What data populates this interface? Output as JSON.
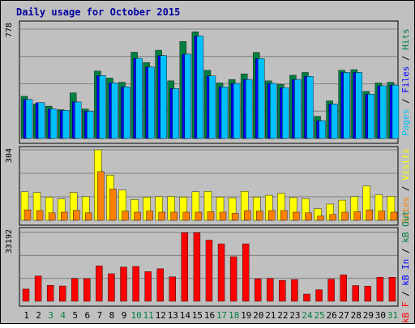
{
  "chart_data": {
    "type": "bar",
    "title": "Daily usage for October 2015",
    "categories": [
      "1",
      "2",
      "3",
      "4",
      "5",
      "6",
      "7",
      "8",
      "9",
      "10",
      "11",
      "12",
      "13",
      "14",
      "15",
      "16",
      "17",
      "18",
      "19",
      "20",
      "21",
      "22",
      "23",
      "24",
      "25",
      "26",
      "27",
      "28",
      "29",
      "30",
      "31"
    ],
    "weekend_days": [
      "3",
      "4",
      "10",
      "11",
      "17",
      "18",
      "24",
      "25",
      "31"
    ],
    "panels": [
      {
        "id": "top",
        "max_label": "778",
        "ylim": [
          0,
          778
        ],
        "legend": [
          "Pages",
          "Files",
          "Hits"
        ],
        "series": [
          {
            "name": "Hits",
            "color": "#008040",
            "values": [
              300,
              245,
              230,
              205,
              325,
              210,
              480,
              430,
              400,
              614,
              540,
              628,
              410,
              690,
              759,
              485,
              395,
              420,
              460,
              612,
              410,
              385,
              450,
              470,
              157,
              268,
              485,
              490,
              335,
              395,
              400
            ]
          },
          {
            "name": "Files",
            "color": "#0000ff",
            "values": [
              278,
              255,
              210,
              200,
              260,
              195,
              448,
              395,
              368,
              570,
              508,
              590,
              355,
              600,
              729,
              445,
              367,
              392,
              420,
              568,
              392,
              362,
              420,
              442,
              127,
              245,
              470,
              470,
              315,
              375,
              380
            ]
          },
          {
            "name": "Pages",
            "color": "#00c0ff",
            "values": [
              278,
              255,
              210,
              200,
              260,
              195,
              448,
              395,
              368,
              570,
              508,
              590,
              355,
              600,
              729,
              445,
              367,
              392,
              420,
              568,
              392,
              362,
              420,
              442,
              127,
              245,
              470,
              470,
              315,
              375,
              380
            ]
          }
        ]
      },
      {
        "id": "middle",
        "max_label": "304",
        "ylim": [
          0,
          304
        ],
        "legend": [
          "Sites",
          "Visits"
        ],
        "series": [
          {
            "name": "Visits",
            "color": "#ffff00",
            "values": [
              123,
              120,
              100,
              92,
              120,
              102,
              304,
              195,
              130,
              90,
              100,
              102,
              103,
              100,
              123,
              125,
              100,
              97,
              125,
              100,
              108,
              116,
              98,
              93,
              50,
              70,
              87,
              102,
              148,
              110,
              103
            ]
          },
          {
            "name": "Sites",
            "color": "#ff8000",
            "values": [
              45,
              42,
              32,
              35,
              43,
              32,
              210,
              135,
              40,
              35,
              40,
              35,
              35,
              35,
              35,
              37,
              35,
              30,
              42,
              40,
              42,
              42,
              35,
              32,
              18,
              25,
              35,
              37,
              45,
              40,
              35
            ]
          }
        ]
      },
      {
        "id": "bottom",
        "max_label": "33192",
        "ylim": [
          0,
          33192
        ],
        "legend": [
          "kB F",
          "kB In",
          "kB Out"
        ],
        "series": [
          {
            "name": "kB F",
            "color": "#ff0000",
            "values": [
              5900,
              12200,
              7700,
              7400,
              11000,
              10900,
              17100,
              13300,
              16500,
              16800,
              14300,
              15700,
              11800,
              33100,
              33100,
              29500,
              27700,
              21500,
              27700,
              10800,
              11000,
              10100,
              10500,
              3500,
              5600,
              10700,
              12700,
              7600,
              7300,
              11600,
              11600
            ]
          }
        ]
      }
    ]
  }
}
